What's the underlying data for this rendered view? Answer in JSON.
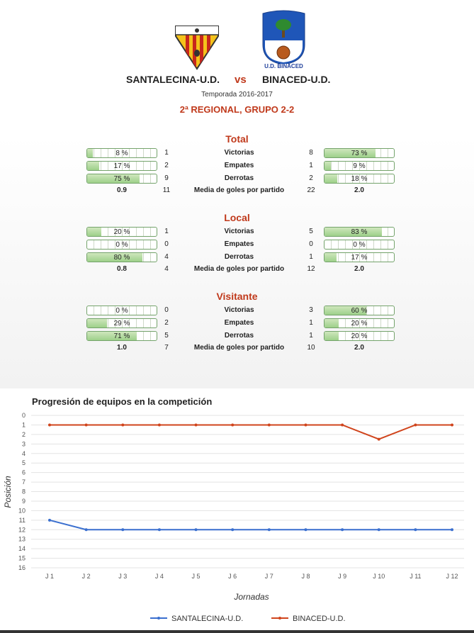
{
  "header": {
    "home_team": "SANTALECINA-U.D.",
    "vs": "vs",
    "away_team": "BINACED-U.D.",
    "season": "Temporada 2016-2017",
    "league": "2ª REGIONAL, GRUPO 2-2",
    "away_logo_text": "U.D. BINACED"
  },
  "sections": [
    {
      "title": "Total",
      "rows": [
        {
          "label": "Victorias",
          "home_pct": 8,
          "home_pct_text": "8 %",
          "home_count": "1",
          "away_count": "8",
          "away_pct": 73,
          "away_pct_text": "73 %"
        },
        {
          "label": "Empates",
          "home_pct": 17,
          "home_pct_text": "17 %",
          "home_count": "2",
          "away_count": "1",
          "away_pct": 9,
          "away_pct_text": "9 %"
        },
        {
          "label": "Derrotas",
          "home_pct": 75,
          "home_pct_text": "75 %",
          "home_count": "9",
          "away_count": "2",
          "away_pct": 18,
          "away_pct_text": "18 %"
        }
      ],
      "avg": {
        "label": "Media de goles por partido",
        "home_avg": "0.9",
        "home_goals": "11",
        "away_goals": "22",
        "away_avg": "2.0"
      }
    },
    {
      "title": "Local",
      "rows": [
        {
          "label": "Victorias",
          "home_pct": 20,
          "home_pct_text": "20 %",
          "home_count": "1",
          "away_count": "5",
          "away_pct": 83,
          "away_pct_text": "83 %"
        },
        {
          "label": "Empates",
          "home_pct": 0,
          "home_pct_text": "0 %",
          "home_count": "0",
          "away_count": "0",
          "away_pct": 0,
          "away_pct_text": "0 %"
        },
        {
          "label": "Derrotas",
          "home_pct": 80,
          "home_pct_text": "80 %",
          "home_count": "4",
          "away_count": "1",
          "away_pct": 17,
          "away_pct_text": "17 %"
        }
      ],
      "avg": {
        "label": "Media de goles por partido",
        "home_avg": "0.8",
        "home_goals": "4",
        "away_goals": "12",
        "away_avg": "2.0"
      }
    },
    {
      "title": "Visitante",
      "rows": [
        {
          "label": "Victorias",
          "home_pct": 0,
          "home_pct_text": "0 %",
          "home_count": "0",
          "away_count": "3",
          "away_pct": 60,
          "away_pct_text": "60 %"
        },
        {
          "label": "Empates",
          "home_pct": 29,
          "home_pct_text": "29 %",
          "home_count": "2",
          "away_count": "1",
          "away_pct": 20,
          "away_pct_text": "20 %"
        },
        {
          "label": "Derrotas",
          "home_pct": 71,
          "home_pct_text": "71 %",
          "home_count": "5",
          "away_count": "1",
          "away_pct": 20,
          "away_pct_text": "20 %"
        }
      ],
      "avg": {
        "label": "Media de goles por partido",
        "home_avg": "1.0",
        "home_goals": "7",
        "away_goals": "10",
        "away_avg": "2.0"
      }
    }
  ],
  "chart_data": {
    "type": "line",
    "title": "Progresión de equipos en la competición",
    "xlabel": "Jornadas",
    "ylabel": "Posición",
    "x": [
      "J 1",
      "J 2",
      "J 3",
      "J 4",
      "J 5",
      "J 6",
      "J 7",
      "J 8",
      "J 9",
      "J 10",
      "J 11",
      "J 12"
    ],
    "y_ticks": [
      0,
      1,
      2,
      3,
      4,
      5,
      6,
      7,
      8,
      9,
      10,
      11,
      12,
      13,
      14,
      15,
      16
    ],
    "ylim": [
      0,
      16
    ],
    "y_reversed": true,
    "grid": true,
    "legend_position": "bottom",
    "series": [
      {
        "name": "SANTALECINA-U.D.",
        "color": "#3a6fcf",
        "values": [
          11,
          12,
          12,
          12,
          12,
          12,
          12,
          12,
          12,
          12,
          12,
          12
        ]
      },
      {
        "name": "BINACED-U.D.",
        "color": "#d0441c",
        "values": [
          1,
          1,
          1,
          1,
          1,
          1,
          1,
          1,
          1,
          2.5,
          1,
          1
        ]
      }
    ]
  },
  "colors": {
    "accent": "#c0391b",
    "bar_fill": "#9ed08a",
    "bar_border": "#74a36b"
  }
}
